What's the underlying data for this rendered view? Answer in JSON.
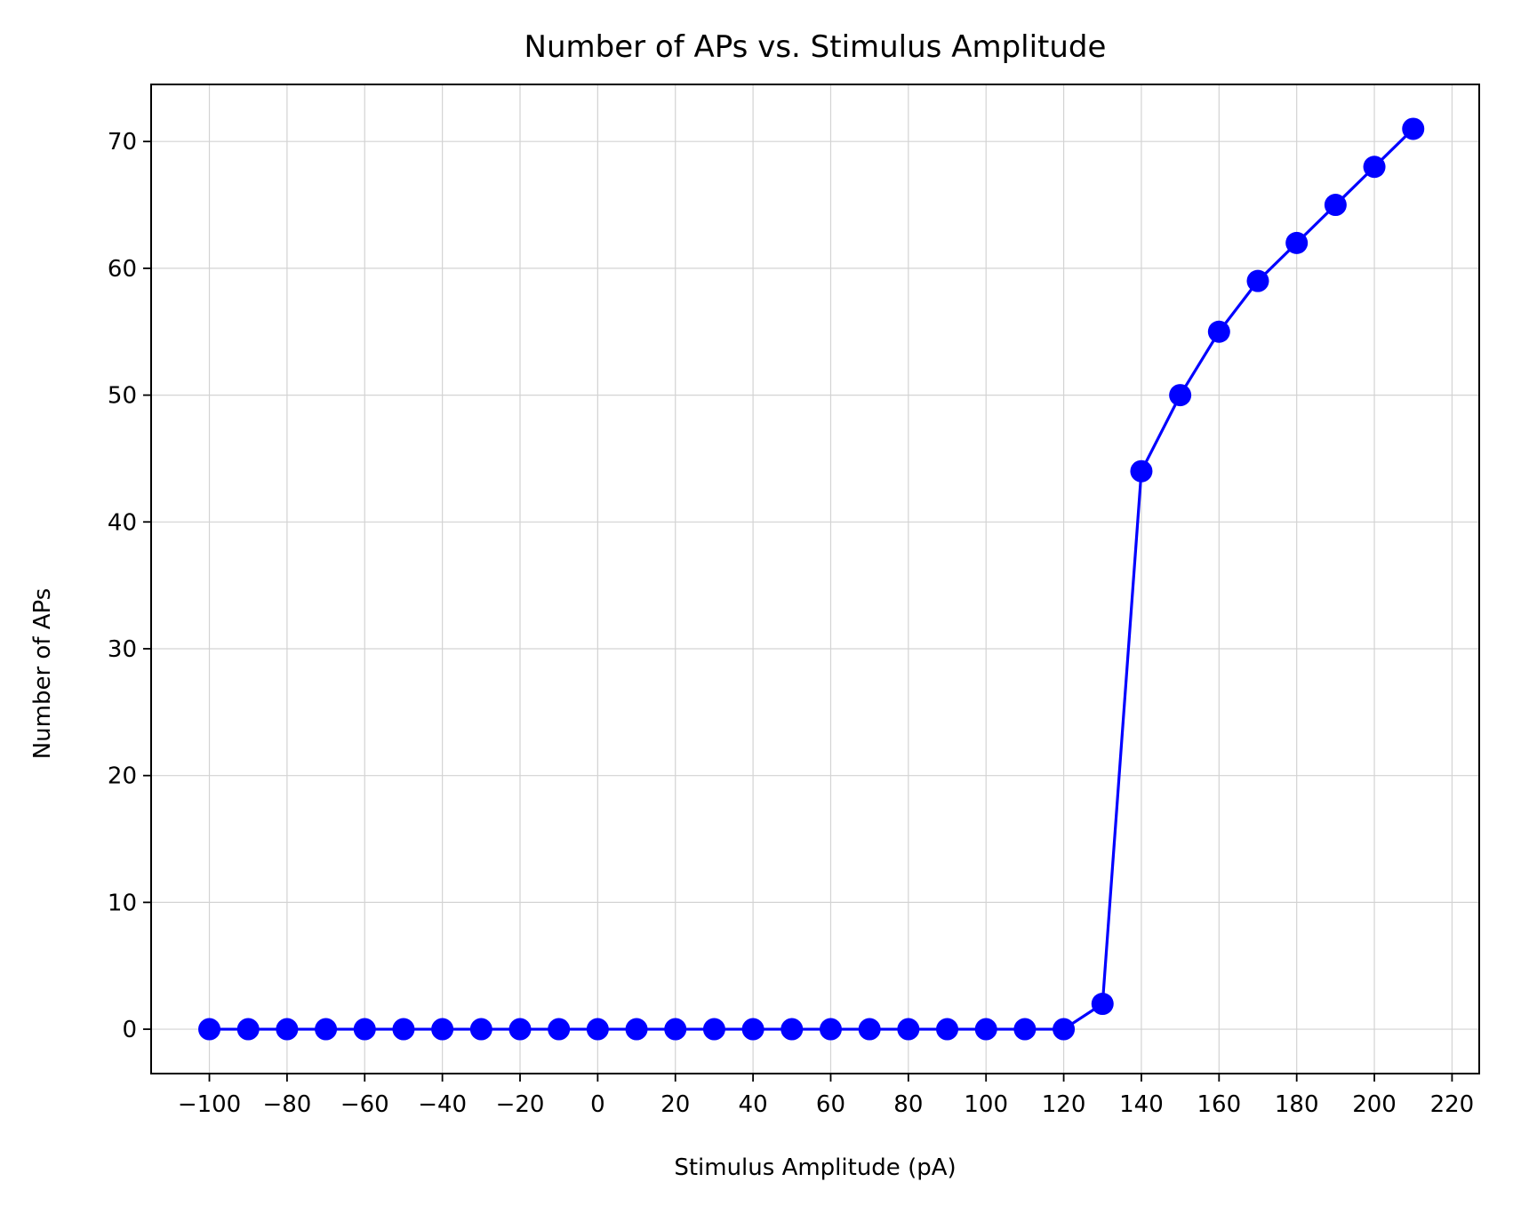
{
  "chart_data": {
    "type": "line",
    "title": "Number of APs vs. Stimulus Amplitude",
    "xlabel": "Stimulus Amplitude (pA)",
    "ylabel": "Number of APs",
    "xlim": [
      -115,
      227
    ],
    "ylim": [
      -3.5,
      74.5
    ],
    "grid": true,
    "x_ticks": [
      -100,
      -80,
      -60,
      -40,
      -20,
      0,
      20,
      40,
      60,
      80,
      100,
      120,
      140,
      160,
      180,
      200,
      220
    ],
    "x_tick_labels": [
      "−100",
      "−80",
      "−60",
      "−40",
      "−20",
      "0",
      "20",
      "40",
      "60",
      "80",
      "100",
      "120",
      "140",
      "160",
      "180",
      "200",
      "220"
    ],
    "y_ticks": [
      0,
      10,
      20,
      30,
      40,
      50,
      60,
      70
    ],
    "y_tick_labels": [
      "0",
      "10",
      "20",
      "30",
      "40",
      "50",
      "60",
      "70"
    ],
    "series": [
      {
        "color": "#0000ff",
        "marker": "circle",
        "x": [
          -100,
          -90,
          -80,
          -70,
          -60,
          -50,
          -40,
          -30,
          -20,
          -10,
          0,
          10,
          20,
          30,
          40,
          50,
          60,
          70,
          80,
          90,
          100,
          110,
          120,
          130,
          140,
          150,
          160,
          170,
          180,
          190,
          200,
          210
        ],
        "y": [
          0,
          0,
          0,
          0,
          0,
          0,
          0,
          0,
          0,
          0,
          0,
          0,
          0,
          0,
          0,
          0,
          0,
          0,
          0,
          0,
          0,
          0,
          0,
          2,
          44,
          50,
          55,
          59,
          62,
          65,
          68,
          71
        ]
      }
    ]
  }
}
